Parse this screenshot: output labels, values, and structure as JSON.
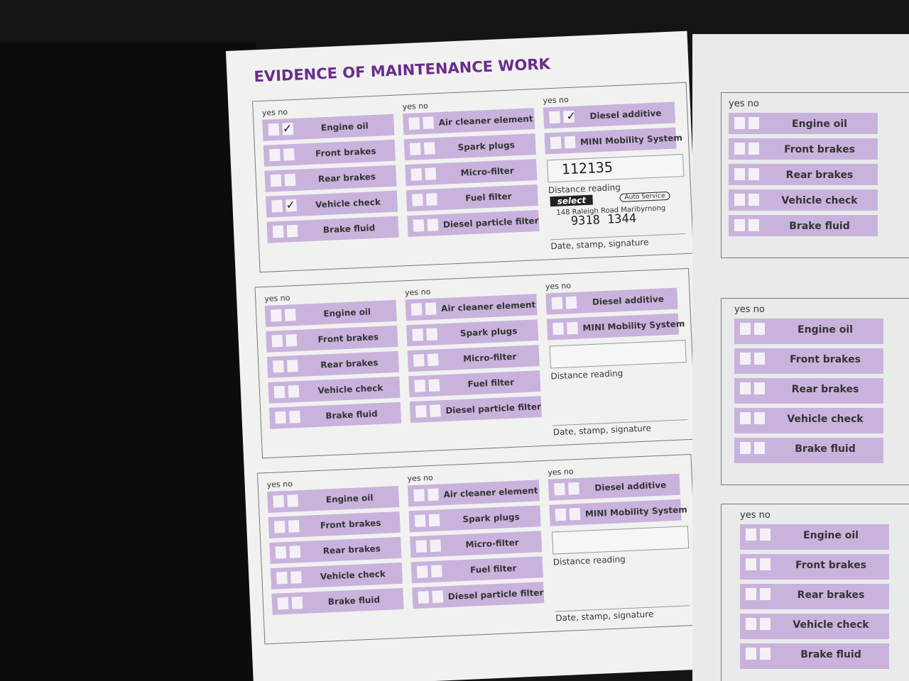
{
  "left_page": {
    "title": "EVIDENCE OF MAINTENANCE WORK",
    "sections": [
      {
        "columns": [
          {
            "header": "yes no",
            "items": [
              "Engine oil",
              "Front brakes",
              "Rear brakes",
              "Vehicle check",
              "Brake fluid"
            ]
          },
          {
            "header": "yes no",
            "items": [
              "Air cleaner element",
              "Spark plugs",
              "Micro-filter",
              "Fuel filter",
              "Diesel particle filter"
            ]
          },
          {
            "header": "yes no",
            "items": [
              "Diesel additive",
              "MINI Mobility System"
            ]
          }
        ],
        "distance_value": "112135",
        "distance_label": "Distance reading",
        "stamp": {
          "brand": "select",
          "badge": "Auto Service",
          "address": "148 Raleigh Road Maribyrnong",
          "phone": "9318 1344"
        },
        "date_label": "Date, stamp, signature"
      },
      {
        "columns": [
          {
            "header": "yes no",
            "items": [
              "Engine oil",
              "Front brakes",
              "Rear brakes",
              "Vehicle check",
              "Brake fluid"
            ]
          },
          {
            "header": "yes no",
            "items": [
              "Air cleaner element",
              "Spark plugs",
              "Micro-filter",
              "Fuel filter",
              "Diesel particle filter"
            ]
          },
          {
            "header": "yes no",
            "items": [
              "Diesel additive",
              "MINI Mobility System"
            ]
          }
        ],
        "distance_label": "Distance reading",
        "date_label": "Date, stamp, signature"
      },
      {
        "columns": [
          {
            "header": "yes no",
            "items": [
              "Engine oil",
              "Front brakes",
              "Rear brakes",
              "Vehicle check",
              "Brake fluid"
            ]
          },
          {
            "header": "yes no",
            "items": [
              "Air cleaner element",
              "Spark plugs",
              "Micro-filter",
              "Fuel filter",
              "Diesel particle filter"
            ]
          },
          {
            "header": "yes no",
            "items": [
              "Diesel additive",
              "MINI Mobility System"
            ]
          }
        ],
        "distance_label": "Distance reading",
        "date_label": "Date, stamp, signature"
      }
    ]
  },
  "right_page": {
    "sections": [
      {
        "header": "yes no",
        "items": [
          "Engine oil",
          "Front brakes",
          "Rear brakes",
          "Vehicle check",
          "Brake fluid"
        ]
      },
      {
        "header": "yes no",
        "items": [
          "Engine oil",
          "Front brakes",
          "Rear brakes",
          "Vehicle check",
          "Brake fluid"
        ]
      },
      {
        "header": "yes no",
        "items": [
          "Engine oil",
          "Front brakes",
          "Rear brakes",
          "Vehicle check",
          "Brake fluid"
        ]
      }
    ]
  }
}
